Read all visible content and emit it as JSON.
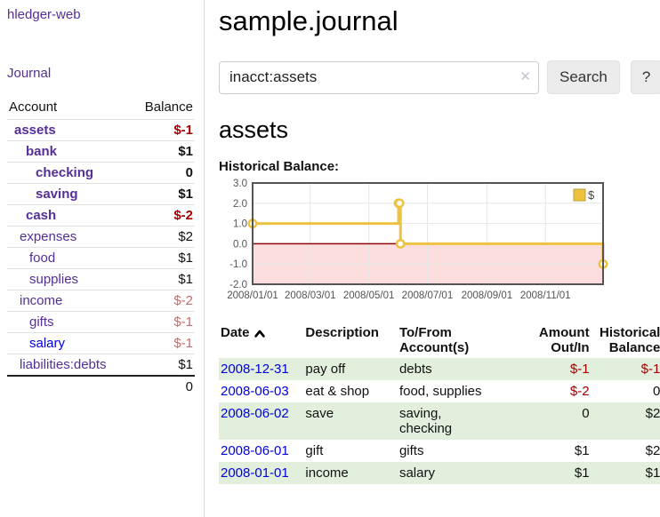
{
  "app": {
    "title": "hledger-web",
    "nav_journal": "Journal"
  },
  "sidebar": {
    "header": {
      "account": "Account",
      "balance": "Balance"
    },
    "accounts": [
      {
        "name": "assets",
        "balance": "$-1"
      },
      {
        "name": "bank",
        "balance": "$1"
      },
      {
        "name": "checking",
        "balance": "0"
      },
      {
        "name": "saving",
        "balance": "$1"
      },
      {
        "name": "cash",
        "balance": "$-2"
      },
      {
        "name": "expenses",
        "balance": "$2"
      },
      {
        "name": "food",
        "balance": "$1"
      },
      {
        "name": "supplies",
        "balance": "$1"
      },
      {
        "name": "income",
        "balance": "$-2"
      },
      {
        "name": "gifts",
        "balance": "$-1"
      },
      {
        "name": "salary",
        "balance": "$-1"
      },
      {
        "name": "liabilities:debts",
        "balance": "$1"
      }
    ],
    "total": "0"
  },
  "main": {
    "title": "sample.journal",
    "search": {
      "value": "inacct:assets",
      "clear": "✕",
      "button": "Search",
      "help": "?"
    },
    "account_heading": "assets",
    "chart_label": "Historical Balance:"
  },
  "chart_data": {
    "type": "line",
    "title": "Historical Balance",
    "step": true,
    "series": [
      {
        "name": "$",
        "color": "#edc240",
        "points": [
          [
            "2008-01-01",
            1
          ],
          [
            "2008-06-01",
            2
          ],
          [
            "2008-06-02",
            2
          ],
          [
            "2008-06-03",
            0
          ],
          [
            "2008-12-31",
            -1
          ]
        ]
      }
    ],
    "xlim": [
      "2008-01-01",
      "2008-12-31"
    ],
    "ylim": [
      -2,
      3
    ],
    "x_ticks": [
      {
        "label": "2008/01/01",
        "date": "2008-01-01"
      },
      {
        "label": "2008/03/01",
        "date": "2008-03-01"
      },
      {
        "label": "2008/05/01",
        "date": "2008-05-01"
      },
      {
        "label": "2008/07/01",
        "date": "2008-07-01"
      },
      {
        "label": "2008/09/01",
        "date": "2008-09-01"
      },
      {
        "label": "2008/11/01",
        "date": "2008-11-01"
      }
    ],
    "y_ticks": [
      {
        "label": "3.0",
        "value": 3
      },
      {
        "label": "2.0",
        "value": 2
      },
      {
        "label": "1.0",
        "value": 1
      },
      {
        "label": "0.0",
        "value": 0
      },
      {
        "label": "-1.0",
        "value": -1
      },
      {
        "label": "-2.0",
        "value": -2
      }
    ],
    "legend": {
      "label": "$",
      "position": "top-right"
    },
    "colors": {
      "border": "#545454",
      "grid": "#e6e6e6",
      "zero_line": "#8d0000",
      "negative_fill": "#fbdddd",
      "tick_text": "#545454"
    },
    "grid": true
  },
  "register": {
    "columns": {
      "date": "Date",
      "description": "Description",
      "accounts": "To/From Account(s)",
      "amount": "Amount Out/In",
      "balance": "Historical Balance"
    },
    "rows": [
      {
        "date": "2008-12-31",
        "description": "pay off",
        "accounts": "debts",
        "amount": "$-1",
        "balance": "$-1"
      },
      {
        "date": "2008-06-03",
        "description": "eat & shop",
        "accounts": "food, supplies",
        "amount": "$-2",
        "balance": "0"
      },
      {
        "date": "2008-06-02",
        "description": "save",
        "accounts": "saving,\nchecking",
        "amount": "0",
        "balance": "$2"
      },
      {
        "date": "2008-06-01",
        "description": "gift",
        "accounts": "gifts",
        "amount": "$1",
        "balance": "$2"
      },
      {
        "date": "2008-01-01",
        "description": "income",
        "accounts": "salary",
        "amount": "$1",
        "balance": "$1"
      }
    ]
  }
}
